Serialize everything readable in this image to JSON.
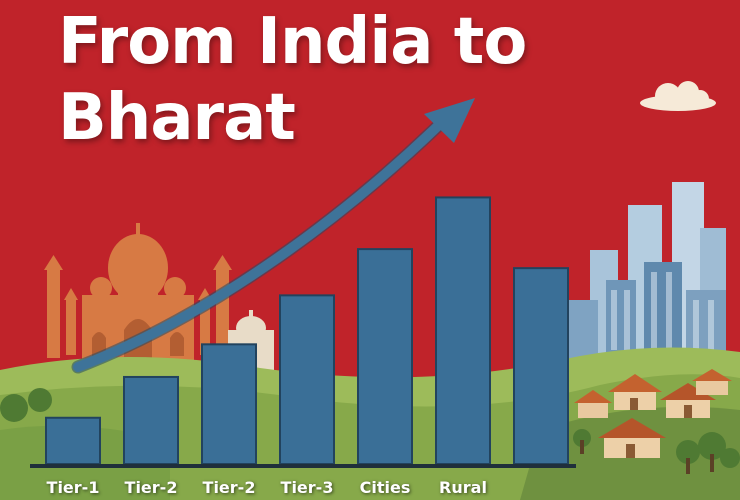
{
  "title": {
    "line1": "From India to",
    "line2": "Bharat"
  },
  "colors": {
    "background": "#c0232a",
    "bar": "#3a6f97",
    "bar_outline": "#22435e",
    "arrow": "#3e7399",
    "grass": "#8fb150",
    "monument": "#d77a44",
    "cloud": "#f6ead8"
  },
  "icons": [
    "taj-mahal-icon",
    "domed-building-icon",
    "skyscrapers-icon",
    "village-houses-icon",
    "cloud-icon",
    "trees-icon",
    "upward-trend-arrow-icon"
  ],
  "chart_data": {
    "type": "bar",
    "categories": [
      "Tier-1",
      "Tier-2",
      "Tier-2",
      "Tier-3",
      "Cities",
      "Rural",
      ""
    ],
    "values": [
      1.7,
      3.2,
      4.4,
      6.2,
      7.9,
      9.8,
      7.2
    ],
    "ylim": [
      0,
      10
    ],
    "grid": false,
    "legend": "none",
    "trend": "increasing"
  }
}
